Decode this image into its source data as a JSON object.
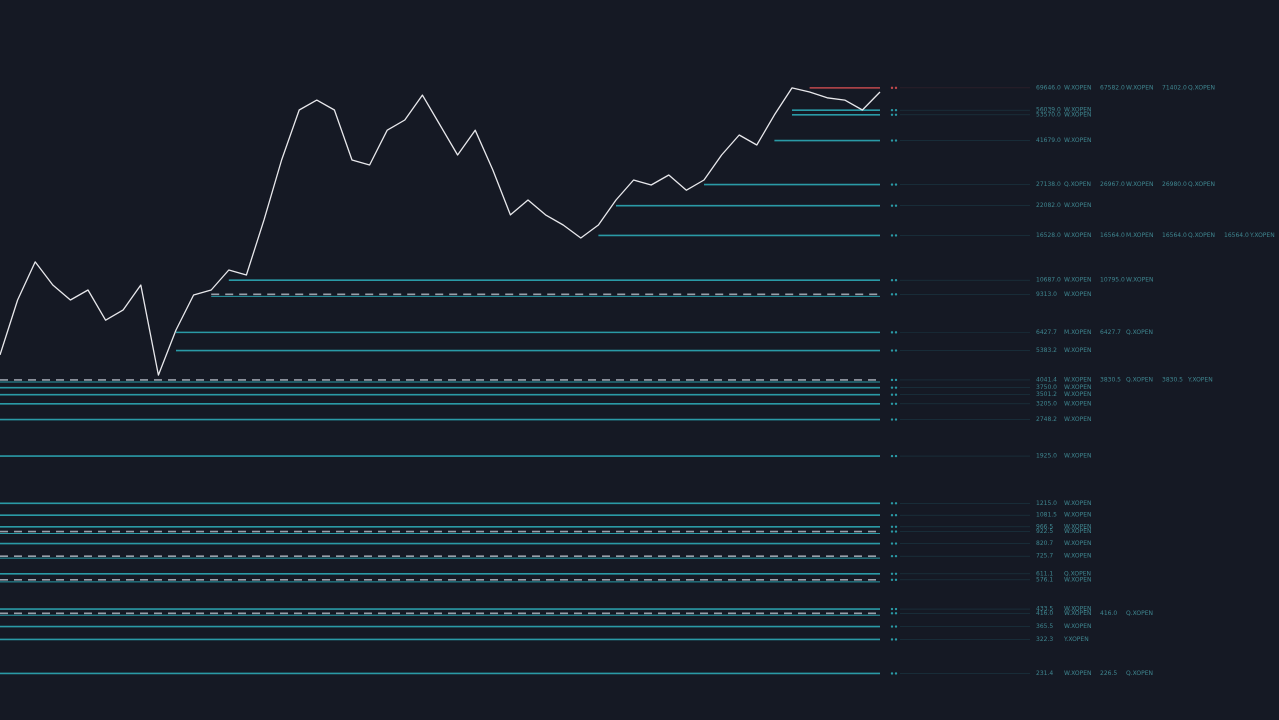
{
  "chart_data": {
    "type": "line",
    "log_scale": true,
    "ylim": [
      147,
      164000
    ],
    "line_color": "#e8e8ec",
    "level_color": "#2a9aa6",
    "values": [
      5160,
      8810,
      12770,
      10200,
      8810,
      9710,
      7240,
      8000,
      10200,
      4240,
      6580,
      9250,
      9710,
      11800,
      11240,
      19240,
      34480,
      56140,
      61800,
      56140,
      34480,
      32850,
      46100,
      50900,
      64900,
      48500,
      36200,
      46100,
      31300,
      20200,
      23360,
      20200,
      18300,
      16130,
      18300,
      23360,
      28370,
      27030,
      29800,
      25700,
      28370,
      36200,
      44000,
      39900,
      53500,
      69646,
      66900,
      63200,
      61800,
      56140,
      66900
    ],
    "levels": [
      {
        "value": 69646,
        "label": "69646.0",
        "tag": "W.XOPEN",
        "color": "#c0484c",
        "extra": [
          {
            "label": "67582.0",
            "tag": "W.XOPEN"
          },
          {
            "label": "71402.0",
            "tag": "Q.XOPEN"
          }
        ]
      },
      {
        "value": 56039,
        "label": "56039.0",
        "tag": "W.XOPEN"
      },
      {
        "value": 53570,
        "label": "53570.0",
        "tag": "W.XOPEN"
      },
      {
        "value": 41679,
        "label": "41679.0",
        "tag": "W.XOPEN"
      },
      {
        "value": 27138,
        "label": "27138.0",
        "tag": "Q.XOPEN",
        "extra": [
          {
            "label": "26967.0",
            "tag": "W.XOPEN"
          },
          {
            "label": "26980.0",
            "tag": "Q.XOPEN"
          }
        ]
      },
      {
        "value": 22082,
        "label": "22082.0",
        "tag": "W.XOPEN"
      },
      {
        "value": 16528,
        "label": "16528.0",
        "tag": "W.XOPEN",
        "extra": [
          {
            "label": "16564.0",
            "tag": "M.XOPEN"
          },
          {
            "label": "16564.0",
            "tag": "Q.XOPEN"
          },
          {
            "label": "16564.0",
            "tag": "Y.XOPEN"
          }
        ]
      },
      {
        "value": 10687,
        "label": "10687.0",
        "tag": "W.XOPEN",
        "extra": [
          {
            "label": "10795.0",
            "tag": "W.XOPEN"
          }
        ]
      },
      {
        "value": 9313,
        "label": "9313.0",
        "tag": "W.XOPEN",
        "dashed": true
      },
      {
        "value": 6427.7,
        "label": "6427.7",
        "tag": "M.XOPEN",
        "extra": [
          {
            "label": "6427.7",
            "tag": "Q.XOPEN"
          }
        ]
      },
      {
        "value": 5383.2,
        "label": "5383.2",
        "tag": "W.XOPEN"
      },
      {
        "value": 4041.4,
        "label": "4041.4",
        "tag": "W.XOPEN",
        "dashed": true,
        "extra": [
          {
            "label": "3830.5",
            "tag": "Q.XOPEN"
          },
          {
            "label": "3830.5",
            "tag": "Y.XOPEN"
          }
        ]
      },
      {
        "value": 3750,
        "label": "3750.0",
        "tag": "W.XOPEN"
      },
      {
        "value": 3501.2,
        "label": "3501.2",
        "tag": "W.XOPEN"
      },
      {
        "value": 3205,
        "label": "3205.0",
        "tag": "W.XOPEN"
      },
      {
        "value": 2748.2,
        "label": "2748.2",
        "tag": "W.XOPEN"
      },
      {
        "value": 1925,
        "label": "1925.0",
        "tag": "W.XOPEN"
      },
      {
        "value": 1215,
        "label": "1215.0",
        "tag": "W.XOPEN"
      },
      {
        "value": 1081.5,
        "label": "1081.5",
        "tag": "W.XOPEN"
      },
      {
        "value": 966.5,
        "label": "966.5",
        "tag": "W.XOPEN"
      },
      {
        "value": 922.5,
        "label": "922.5",
        "tag": "W.XOPEN",
        "dashed": true
      },
      {
        "value": 820.7,
        "label": "820.7",
        "tag": "W.XOPEN"
      },
      {
        "value": 725.7,
        "label": "725.7",
        "tag": "W.XOPEN",
        "dashed": true
      },
      {
        "value": 611.1,
        "label": "611.1",
        "tag": "Q.XOPEN"
      },
      {
        "value": 576.1,
        "label": "576.1",
        "tag": "W.XOPEN",
        "dashed": true
      },
      {
        "value": 433.5,
        "label": "433.5",
        "tag": "W.XOPEN"
      },
      {
        "value": 416,
        "label": "416.0",
        "tag": "W.XOPEN",
        "dashed": true,
        "extra": [
          {
            "label": "416.0",
            "tag": "Q.XOPEN"
          }
        ]
      },
      {
        "value": 365.5,
        "label": "365.5",
        "tag": "W.XOPEN"
      },
      {
        "value": 322.3,
        "label": "322.3",
        "tag": "Y.XOPEN"
      },
      {
        "value": 231.4,
        "label": "231.4",
        "tag": "W.XOPEN",
        "extra": [
          {
            "label": "226.5",
            "tag": "Q.XOPEN"
          }
        ]
      }
    ]
  }
}
